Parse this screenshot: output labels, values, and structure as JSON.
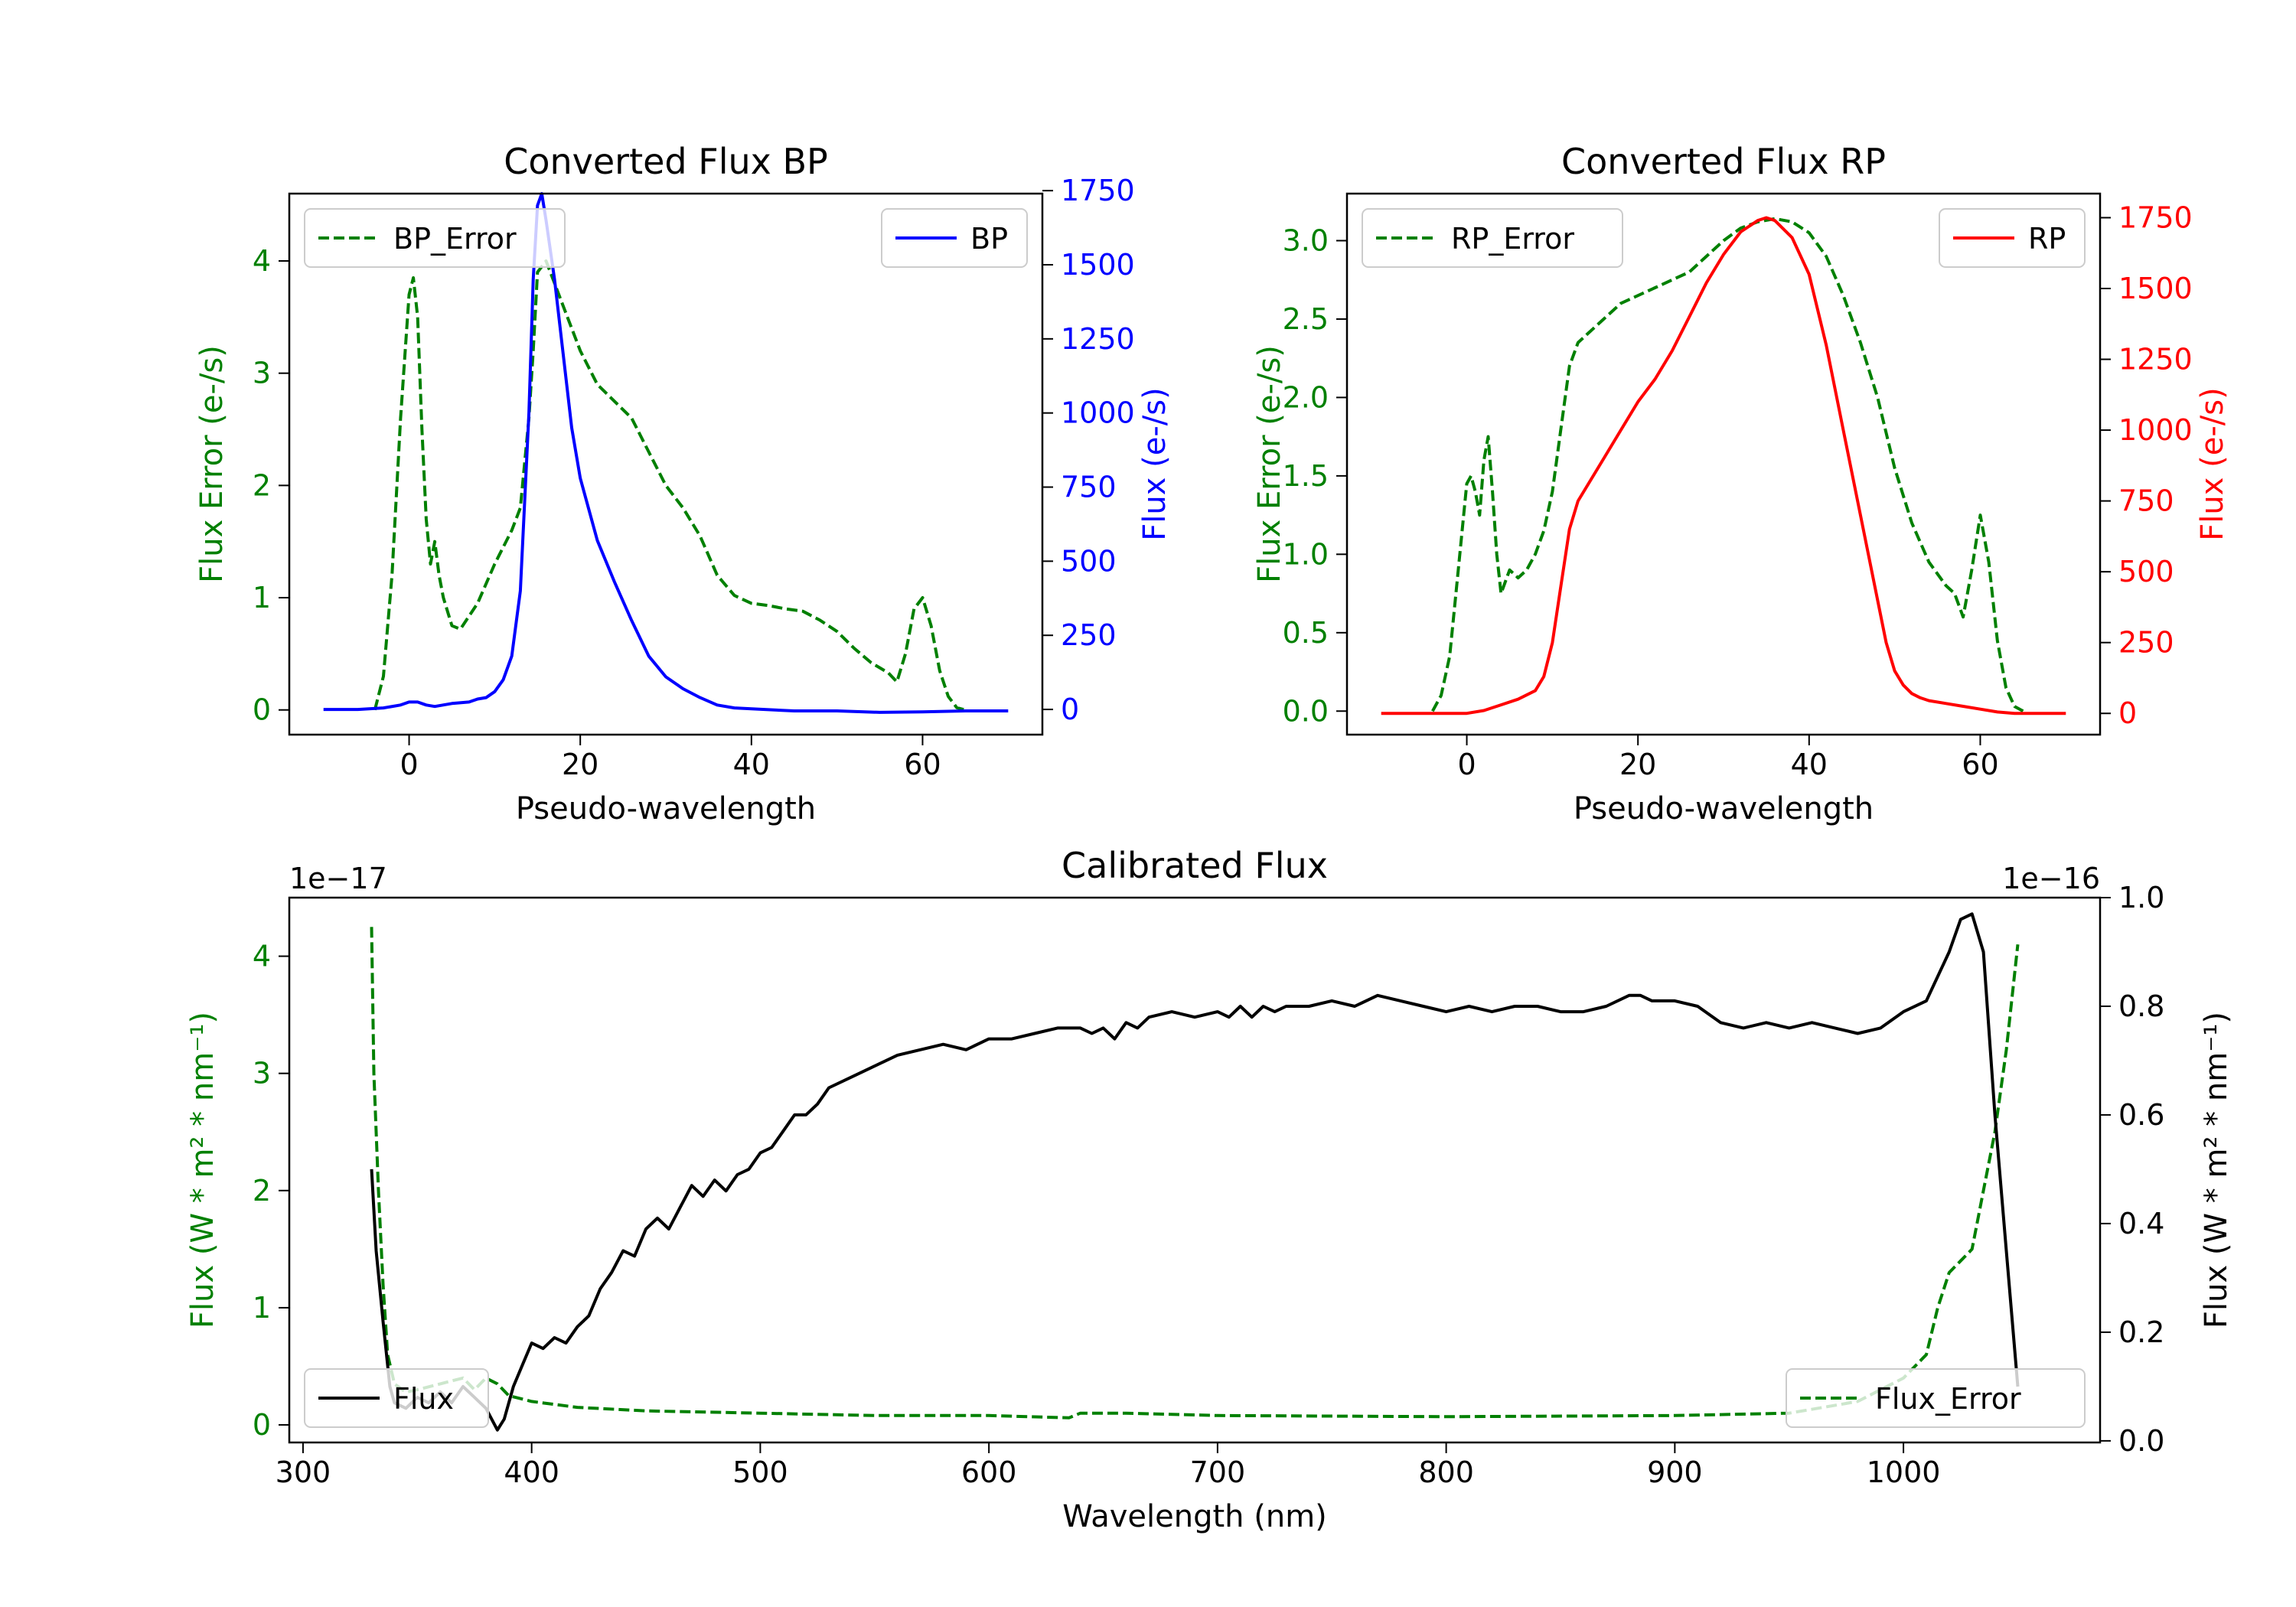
{
  "chart_data": [
    {
      "type": "line",
      "title": "Converted Flux BP",
      "xlabel": "Pseudo-wavelength",
      "ylabel_left": "Flux Error (e-/s)",
      "ylabel_right": "Flux (e-/s)",
      "xlim": [
        -14,
        74
      ],
      "ylim_left": [
        -0.22,
        4.6
      ],
      "ylim_right": [
        -85,
        1740
      ],
      "x_ticks": [
        0,
        20,
        40,
        60
      ],
      "x_tick_labels": [
        "0",
        "20",
        "40",
        "60"
      ],
      "y_left_ticks": [
        0,
        1,
        2,
        3,
        4
      ],
      "y_left_tick_labels": [
        "0",
        "1",
        "2",
        "3",
        "4"
      ],
      "y_right_ticks": [
        0,
        250,
        500,
        750,
        1000,
        1250,
        1500,
        1750
      ],
      "y_right_tick_labels": [
        "0",
        "250",
        "500",
        "750",
        "1000",
        "1250",
        "1500",
        "1750"
      ],
      "left_color": "#008000",
      "right_color": "#0000ff",
      "series": [
        {
          "name": "BP_Error",
          "axis": "left",
          "style": "dashed",
          "color": "#008000",
          "x": [
            -4,
            -3,
            -2,
            -1,
            0,
            0.5,
            1,
            1.5,
            2,
            2.5,
            3,
            3.5,
            4,
            5,
            6,
            8,
            10,
            12,
            13,
            14,
            14.5,
            15,
            16,
            18,
            20,
            22,
            24,
            26,
            28,
            30,
            32,
            34,
            36,
            38,
            40,
            42,
            44,
            46,
            48,
            50,
            52,
            54,
            56,
            57,
            58,
            59,
            60,
            61,
            62,
            63,
            64,
            65
          ],
          "y": [
            0,
            0.3,
            1.2,
            2.6,
            3.7,
            3.85,
            3.5,
            2.5,
            1.7,
            1.3,
            1.5,
            1.2,
            1.0,
            0.75,
            0.72,
            0.95,
            1.3,
            1.6,
            1.8,
            2.6,
            3.2,
            3.9,
            4.0,
            3.6,
            3.2,
            2.9,
            2.75,
            2.6,
            2.3,
            2.0,
            1.8,
            1.55,
            1.2,
            1.02,
            0.95,
            0.93,
            0.9,
            0.88,
            0.8,
            0.7,
            0.55,
            0.42,
            0.33,
            0.25,
            0.5,
            0.9,
            1.0,
            0.75,
            0.35,
            0.12,
            0.02,
            0.0
          ]
        },
        {
          "name": "BP",
          "axis": "right",
          "style": "solid",
          "color": "#0000ff",
          "x": [
            -10,
            -6,
            -3,
            -1,
            0,
            1,
            2,
            3,
            5,
            7,
            8,
            9,
            10,
            11,
            12,
            13,
            14,
            14.5,
            15,
            15.5,
            16,
            17,
            18,
            19,
            20,
            22,
            24,
            26,
            28,
            30,
            32,
            34,
            36,
            38,
            40,
            45,
            50,
            55,
            60,
            65,
            70
          ],
          "y": [
            0,
            0,
            5,
            15,
            25,
            25,
            15,
            10,
            20,
            25,
            35,
            40,
            60,
            100,
            180,
            400,
            1000,
            1450,
            1700,
            1740,
            1650,
            1450,
            1200,
            950,
            780,
            570,
            430,
            300,
            180,
            110,
            70,
            40,
            15,
            5,
            2,
            -5,
            -5,
            -10,
            -8,
            -5,
            -5
          ]
        }
      ],
      "legend": [
        {
          "label": "BP_Error",
          "position": "upper-left"
        },
        {
          "label": "BP",
          "position": "upper-right"
        }
      ]
    },
    {
      "type": "line",
      "title": "Converted Flux RP",
      "xlabel": "Pseudo-wavelength",
      "ylabel_left": "Flux Error (e-/s)",
      "ylabel_right": "Flux (e-/s)",
      "xlim": [
        -14,
        74
      ],
      "ylim_left": [
        -0.15,
        3.3
      ],
      "ylim_right": [
        -75,
        1835
      ],
      "x_ticks": [
        0,
        20,
        40,
        60
      ],
      "x_tick_labels": [
        "0",
        "20",
        "40",
        "60"
      ],
      "y_left_ticks": [
        0.0,
        0.5,
        1.0,
        1.5,
        2.0,
        2.5,
        3.0
      ],
      "y_left_tick_labels": [
        "0.0",
        "0.5",
        "1.0",
        "1.5",
        "2.0",
        "2.5",
        "3.0"
      ],
      "y_right_ticks": [
        0,
        250,
        500,
        750,
        1000,
        1250,
        1500,
        1750
      ],
      "y_right_tick_labels": [
        "0",
        "250",
        "500",
        "750",
        "1000",
        "1250",
        "1500",
        "1750"
      ],
      "left_color": "#008000",
      "right_color": "#ff0000",
      "series": [
        {
          "name": "RP_Error",
          "axis": "left",
          "style": "dashed",
          "color": "#008000",
          "x": [
            -4,
            -3,
            -2,
            -1,
            0,
            0.5,
            1,
            1.5,
            2,
            2.5,
            3,
            3.5,
            4,
            5,
            6,
            7,
            8,
            9,
            10,
            11,
            12,
            13,
            14,
            16,
            18,
            20,
            22,
            24,
            26,
            28,
            30,
            32,
            34,
            36,
            38,
            40,
            42,
            44,
            46,
            48,
            50,
            52,
            54,
            56,
            57,
            58,
            59,
            60,
            61,
            62,
            63,
            64,
            65
          ],
          "y": [
            0,
            0.1,
            0.35,
            0.9,
            1.45,
            1.5,
            1.4,
            1.25,
            1.6,
            1.75,
            1.4,
            1.0,
            0.75,
            0.9,
            0.85,
            0.9,
            1.0,
            1.15,
            1.4,
            1.8,
            2.2,
            2.35,
            2.4,
            2.5,
            2.6,
            2.65,
            2.7,
            2.75,
            2.8,
            2.9,
            3.0,
            3.08,
            3.12,
            3.14,
            3.12,
            3.05,
            2.9,
            2.65,
            2.35,
            2.0,
            1.55,
            1.2,
            0.95,
            0.8,
            0.75,
            0.6,
            0.9,
            1.25,
            0.95,
            0.45,
            0.15,
            0.03,
            0.0
          ]
        },
        {
          "name": "RP",
          "axis": "right",
          "style": "solid",
          "color": "#ff0000",
          "x": [
            -10,
            -5,
            0,
            2,
            4,
            6,
            8,
            9,
            10,
            11,
            12,
            13,
            14,
            16,
            18,
            20,
            22,
            24,
            26,
            28,
            30,
            32,
            34,
            35,
            36,
            38,
            40,
            42,
            44,
            46,
            48,
            49,
            50,
            51,
            52,
            53,
            54,
            56,
            58,
            60,
            62,
            64,
            66,
            70
          ],
          "y": [
            0,
            0,
            0,
            10,
            30,
            50,
            80,
            130,
            250,
            450,
            650,
            750,
            800,
            900,
            1000,
            1100,
            1180,
            1280,
            1400,
            1520,
            1620,
            1700,
            1740,
            1750,
            1740,
            1680,
            1550,
            1300,
            1000,
            700,
            400,
            250,
            150,
            100,
            70,
            55,
            45,
            35,
            25,
            15,
            5,
            0,
            0,
            0
          ]
        }
      ],
      "legend": [
        {
          "label": "RP_Error",
          "position": "upper-left"
        },
        {
          "label": "RP",
          "position": "upper-right"
        }
      ]
    },
    {
      "type": "line",
      "title": "Calibrated Flux",
      "xlabel": "Wavelength (nm)",
      "ylabel_left": "Flux (W * m² * nm⁻¹)",
      "ylabel_right": "Flux (W * m² * nm⁻¹)",
      "left_scale_label": "1e−17",
      "right_scale_label": "1e−16",
      "xlim": [
        294,
        1086
      ],
      "ylim_left": [
        -0.15,
        4.5
      ],
      "ylim_right": [
        -0.003,
        1.0
      ],
      "x_ticks": [
        300,
        400,
        500,
        600,
        700,
        800,
        900,
        1000
      ],
      "x_tick_labels": [
        "300",
        "400",
        "500",
        "600",
        "700",
        "800",
        "900",
        "1000"
      ],
      "y_left_ticks": [
        0,
        1,
        2,
        3,
        4
      ],
      "y_left_tick_labels": [
        "0",
        "1",
        "2",
        "3",
        "4"
      ],
      "y_right_ticks": [
        0.0,
        0.2,
        0.4,
        0.6,
        0.8,
        1.0
      ],
      "y_right_tick_labels": [
        "0.0",
        "0.2",
        "0.4",
        "0.6",
        "0.8",
        "1.0"
      ],
      "left_color": "#008000",
      "right_color": "#000000",
      "series": [
        {
          "name": "Flux_Error",
          "axis": "left",
          "style": "dashed",
          "color": "#008000",
          "x": [
            330,
            331,
            333,
            335,
            337,
            340,
            345,
            350,
            360,
            370,
            375,
            380,
            385,
            390,
            400,
            420,
            450,
            500,
            550,
            600,
            635,
            640,
            660,
            700,
            800,
            900,
            950,
            980,
            1000,
            1010,
            1015,
            1020,
            1025,
            1030,
            1035,
            1040,
            1045,
            1050
          ],
          "y": [
            4.25,
            3.0,
            2.0,
            1.2,
            0.6,
            0.35,
            0.28,
            0.3,
            0.35,
            0.4,
            0.3,
            0.4,
            0.35,
            0.25,
            0.2,
            0.15,
            0.12,
            0.1,
            0.08,
            0.08,
            0.06,
            0.1,
            0.1,
            0.08,
            0.07,
            0.08,
            0.1,
            0.2,
            0.4,
            0.6,
            1.0,
            1.3,
            1.4,
            1.5,
            2.0,
            2.5,
            3.2,
            4.1
          ]
        },
        {
          "name": "Flux",
          "axis": "right",
          "style": "solid",
          "color": "#000000",
          "x": [
            330,
            332,
            335,
            338,
            340,
            345,
            350,
            355,
            360,
            365,
            370,
            375,
            380,
            385,
            388,
            392,
            396,
            400,
            405,
            410,
            415,
            420,
            425,
            430,
            435,
            440,
            445,
            450,
            455,
            460,
            465,
            470,
            475,
            480,
            485,
            490,
            495,
            500,
            505,
            510,
            515,
            520,
            525,
            530,
            540,
            550,
            560,
            570,
            580,
            590,
            600,
            610,
            620,
            630,
            640,
            645,
            650,
            655,
            660,
            665,
            670,
            680,
            690,
            700,
            705,
            710,
            715,
            720,
            725,
            730,
            740,
            750,
            760,
            770,
            780,
            790,
            800,
            810,
            820,
            830,
            840,
            850,
            860,
            870,
            880,
            885,
            890,
            900,
            910,
            920,
            930,
            940,
            950,
            960,
            970,
            980,
            990,
            1000,
            1010,
            1020,
            1025,
            1030,
            1035,
            1040,
            1045,
            1050
          ],
          "y": [
            0.5,
            0.35,
            0.22,
            0.1,
            0.07,
            0.06,
            0.08,
            0.07,
            0.09,
            0.07,
            0.1,
            0.08,
            0.06,
            0.02,
            0.04,
            0.1,
            0.14,
            0.18,
            0.17,
            0.19,
            0.18,
            0.21,
            0.23,
            0.28,
            0.31,
            0.35,
            0.34,
            0.39,
            0.41,
            0.39,
            0.43,
            0.47,
            0.45,
            0.48,
            0.46,
            0.49,
            0.5,
            0.53,
            0.54,
            0.57,
            0.6,
            0.6,
            0.62,
            0.65,
            0.67,
            0.69,
            0.71,
            0.72,
            0.73,
            0.72,
            0.74,
            0.74,
            0.75,
            0.76,
            0.76,
            0.75,
            0.76,
            0.74,
            0.77,
            0.76,
            0.78,
            0.79,
            0.78,
            0.79,
            0.78,
            0.8,
            0.78,
            0.8,
            0.79,
            0.8,
            0.8,
            0.81,
            0.8,
            0.82,
            0.81,
            0.8,
            0.79,
            0.8,
            0.79,
            0.8,
            0.8,
            0.79,
            0.79,
            0.8,
            0.82,
            0.82,
            0.81,
            0.81,
            0.8,
            0.77,
            0.76,
            0.77,
            0.76,
            0.77,
            0.76,
            0.75,
            0.76,
            0.79,
            0.81,
            0.9,
            0.96,
            0.97,
            0.9,
            0.6,
            0.35,
            0.1
          ]
        }
      ],
      "legend": [
        {
          "label": "Flux",
          "position": "lower-left"
        },
        {
          "label": "Flux_Error",
          "position": "lower-right"
        }
      ]
    }
  ]
}
